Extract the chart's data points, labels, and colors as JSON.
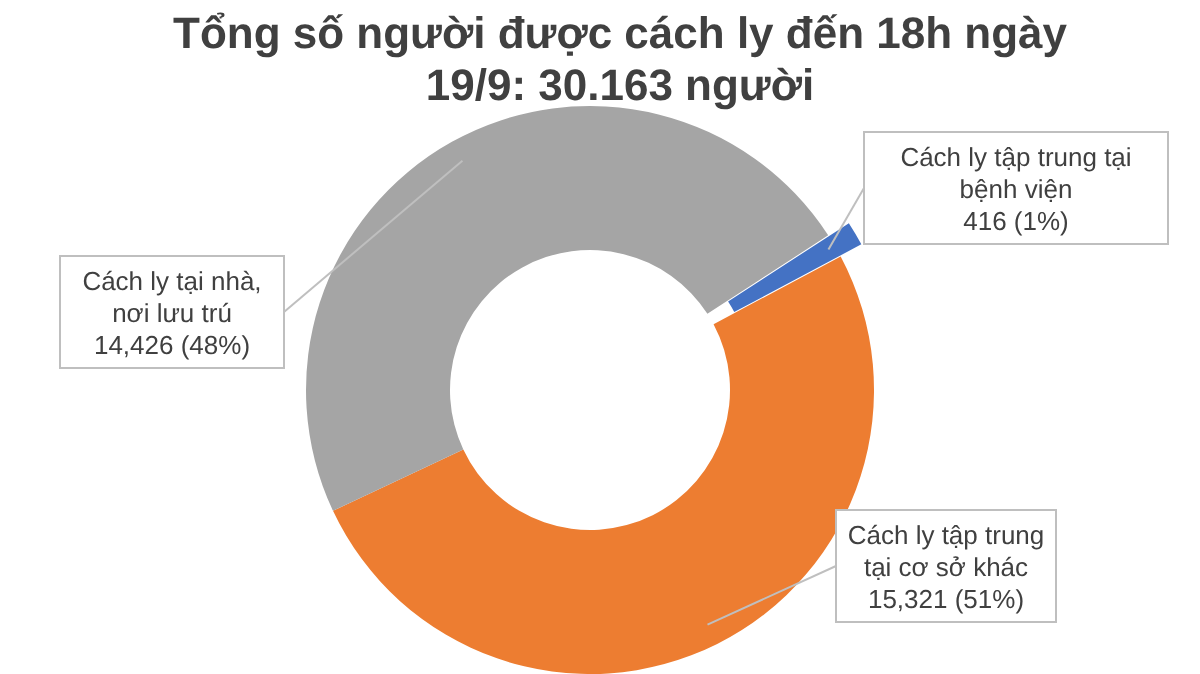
{
  "chart_data": {
    "type": "donut",
    "title": "Tổng số người được cách ly đến 18h ngày 19/9: 30.163 người",
    "categories": [
      "Cách ly tập trung tại bệnh viện",
      "Cách ly tập trung tại cơ sở khác",
      "Cách ly tại nhà, nơi lưu trú"
    ],
    "values": [
      416,
      15321,
      14426
    ],
    "value_labels": [
      "416 (1%)",
      "15,321 (51%)",
      "14,426 (48%)"
    ],
    "colors": [
      "#4472c4",
      "#ed7d31",
      "#a5a5a5"
    ],
    "legend": false
  }
}
